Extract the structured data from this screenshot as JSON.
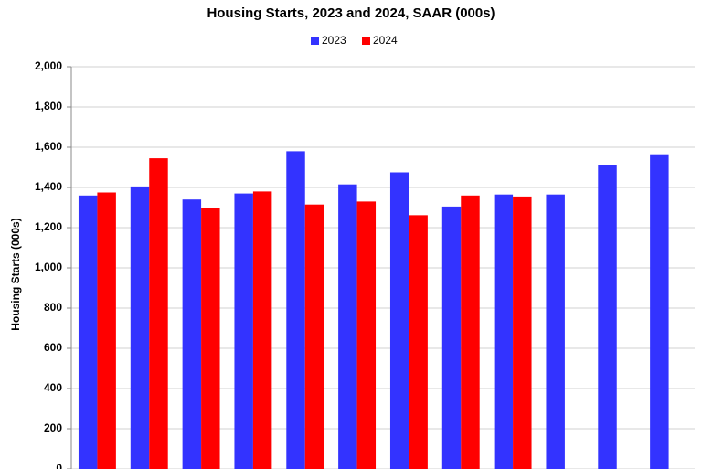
{
  "chart_data": {
    "type": "bar",
    "title": "Housing Starts,  2023 and 2024, SAAR (000s)",
    "y_label": "Housing Starts (000s)",
    "categories": [
      null,
      null,
      null,
      null,
      null,
      null,
      null,
      null,
      null,
      null,
      null,
      null
    ],
    "series": [
      {
        "name": "2023",
        "color": "#3333ff",
        "values": [
          1360,
          1405,
          1340,
          1370,
          1580,
          1415,
          1475,
          1305,
          1365,
          1365,
          1510,
          1565
        ]
      },
      {
        "name": "2024",
        "color": "#ff0000",
        "values": [
          1375,
          1545,
          1297,
          1380,
          1315,
          1330,
          1262,
          1360,
          1355,
          null,
          null,
          null
        ]
      }
    ],
    "ylim": [
      0,
      2000
    ],
    "yticks": [
      0,
      200,
      400,
      600,
      800,
      {
        "value": 1000,
        "label": "1,000"
      },
      {
        "value": 1200,
        "label": "1,200"
      },
      {
        "value": 1400,
        "label": "1,400"
      },
      {
        "value": 1600,
        "label": "1,600"
      },
      {
        "value": 1800,
        "label": "1,800"
      },
      {
        "value": 2000,
        "label": "2,000"
      }
    ],
    "grid": true,
    "legend": "top"
  }
}
